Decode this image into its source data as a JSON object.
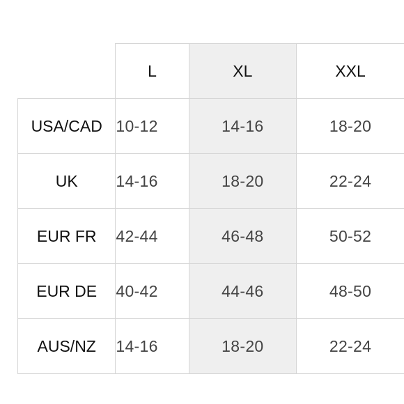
{
  "size_chart": {
    "columns": [
      "L",
      "XL",
      "XXL"
    ],
    "rows": [
      {
        "region": "USA/CAD",
        "values": [
          "10-12",
          "14-16",
          "18-20"
        ]
      },
      {
        "region": "UK",
        "values": [
          "14-16",
          "18-20",
          "22-24"
        ]
      },
      {
        "region": "EUR FR",
        "values": [
          "42-44",
          "46-48",
          "50-52"
        ]
      },
      {
        "region": "EUR DE",
        "values": [
          "40-42",
          "44-46",
          "48-50"
        ]
      },
      {
        "region": "AUS/NZ",
        "values": [
          "14-16",
          "18-20",
          "22-24"
        ]
      }
    ],
    "highlight_column": "XL",
    "highlight_color": "#efefef"
  }
}
